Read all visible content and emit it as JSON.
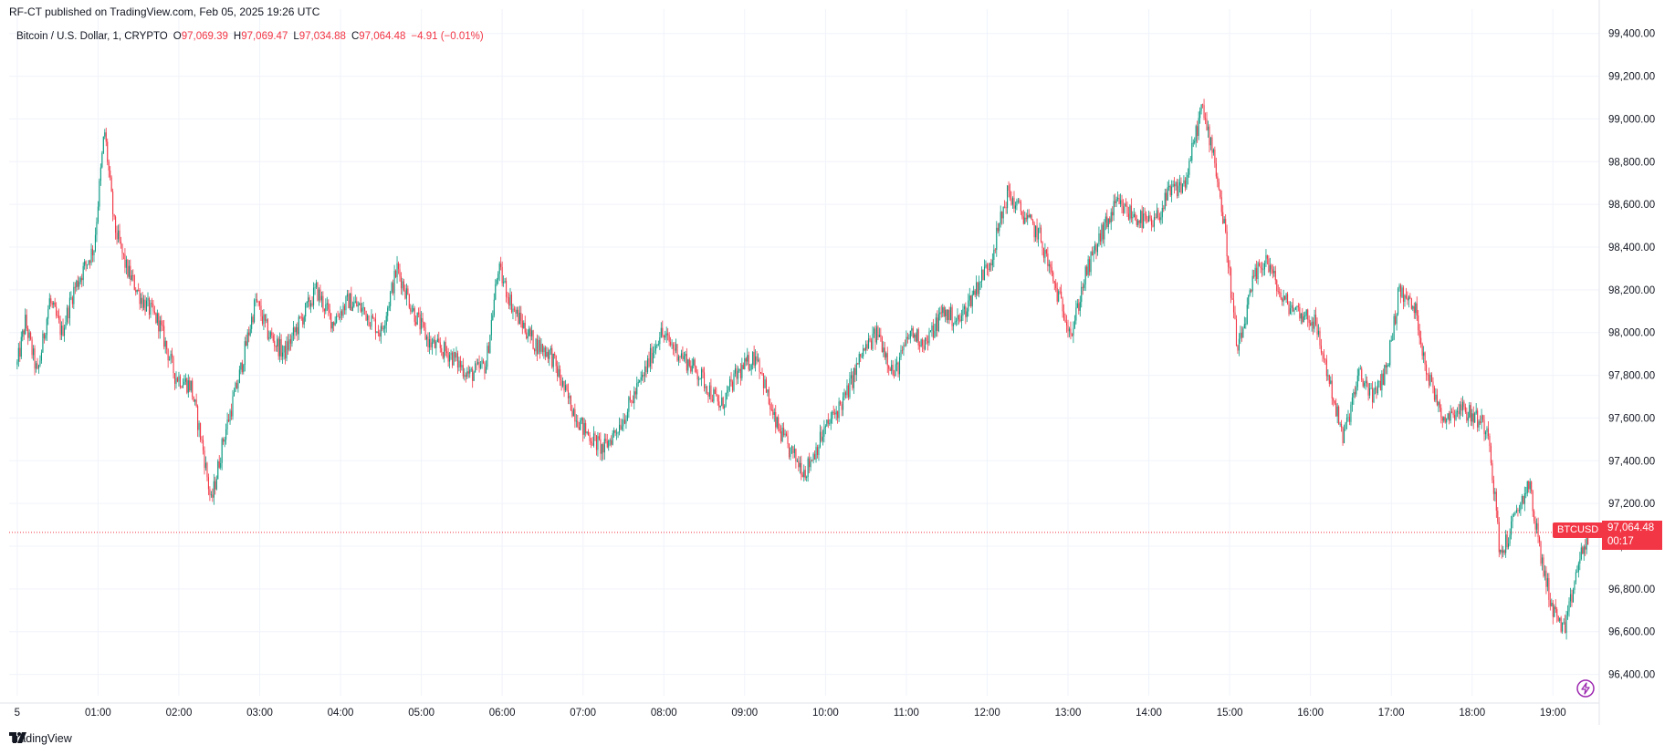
{
  "header": {
    "published": "RF-CT published on TradingView.com, Feb 05, 2025 19:26 UTC"
  },
  "legend": {
    "symbol": "Bitcoin / U.S. Dollar, 1, CRYPTO",
    "o_label": "O",
    "o_value": "97,069.39",
    "h_label": "H",
    "h_value": "97,069.47",
    "l_label": "L",
    "l_value": "97,034.88",
    "c_label": "C",
    "c_value": "97,064.48",
    "change": "−4.91 (−0.01%)"
  },
  "price_tag": {
    "symbol": "BTCUSD",
    "price": "97,064.48",
    "countdown": "00:17"
  },
  "footer": {
    "brand": "TradingView"
  },
  "colors": {
    "up": "#089981",
    "down": "#f23645",
    "grid": "#f0f3fa",
    "text": "#131722",
    "last_line": "#f23645"
  },
  "icons": {
    "logo": "tradingview-logo-icon",
    "bolt": "lightning-icon"
  },
  "chart_data": {
    "type": "candlestick",
    "title": "Bitcoin / U.S. Dollar, 1, CRYPTO",
    "ylim": [
      96300,
      99450
    ],
    "y_ticks": [
      96400,
      96600,
      96800,
      97000,
      97200,
      97400,
      97600,
      97800,
      98000,
      98200,
      98400,
      98600,
      98800,
      99000,
      99200,
      99400
    ],
    "y_tick_labels": [
      "96,400.00",
      "96,600.00",
      "96,800.00",
      "97,000.00",
      "97,200.00",
      "97,400.00",
      "97,600.00",
      "97,800.00",
      "98,000.00",
      "98,200.00",
      "98,400.00",
      "98,600.00",
      "98,800.00",
      "99,000.00",
      "99,200.00",
      "99,400.00"
    ],
    "x_ticks": [
      "5",
      "01:00",
      "02:00",
      "03:00",
      "04:00",
      "05:00",
      "06:00",
      "07:00",
      "08:00",
      "09:00",
      "10:00",
      "11:00",
      "12:00",
      "13:00",
      "14:00",
      "15:00",
      "16:00",
      "17:00",
      "18:00",
      "19:00"
    ],
    "x_tick_hours": [
      0,
      1,
      2,
      3,
      4,
      5,
      6,
      7,
      8,
      9,
      10,
      11,
      12,
      13,
      14,
      15,
      16,
      17,
      18,
      19
    ],
    "x_range_hours": [
      -0.1,
      19.55
    ],
    "last_price": 97064.48,
    "grid": true,
    "path": [
      [
        0.0,
        97850
      ],
      [
        0.1,
        98050
      ],
      [
        0.25,
        97800
      ],
      [
        0.4,
        98150
      ],
      [
        0.55,
        98000
      ],
      [
        0.7,
        98200
      ],
      [
        0.95,
        98400
      ],
      [
        1.08,
        98950
      ],
      [
        1.2,
        98500
      ],
      [
        1.35,
        98300
      ],
      [
        1.55,
        98150
      ],
      [
        1.75,
        98050
      ],
      [
        1.95,
        97800
      ],
      [
        2.15,
        97750
      ],
      [
        2.3,
        97450
      ],
      [
        2.4,
        97200
      ],
      [
        2.55,
        97500
      ],
      [
        2.75,
        97800
      ],
      [
        2.95,
        98150
      ],
      [
        3.1,
        98000
      ],
      [
        3.3,
        97900
      ],
      [
        3.5,
        98050
      ],
      [
        3.7,
        98200
      ],
      [
        3.9,
        98050
      ],
      [
        4.1,
        98150
      ],
      [
        4.3,
        98100
      ],
      [
        4.5,
        98000
      ],
      [
        4.7,
        98300
      ],
      [
        4.9,
        98100
      ],
      [
        5.1,
        97950
      ],
      [
        5.35,
        97900
      ],
      [
        5.6,
        97800
      ],
      [
        5.8,
        97850
      ],
      [
        5.95,
        98300
      ],
      [
        6.15,
        98100
      ],
      [
        6.4,
        97950
      ],
      [
        6.6,
        97900
      ],
      [
        6.8,
        97700
      ],
      [
        7.0,
        97550
      ],
      [
        7.25,
        97450
      ],
      [
        7.5,
        97600
      ],
      [
        7.75,
        97800
      ],
      [
        7.95,
        98000
      ],
      [
        8.2,
        97900
      ],
      [
        8.45,
        97800
      ],
      [
        8.7,
        97650
      ],
      [
        8.9,
        97800
      ],
      [
        9.15,
        97900
      ],
      [
        9.35,
        97600
      ],
      [
        9.55,
        97450
      ],
      [
        9.75,
        97350
      ],
      [
        10.0,
        97550
      ],
      [
        10.25,
        97700
      ],
      [
        10.45,
        97900
      ],
      [
        10.65,
        98000
      ],
      [
        10.85,
        97800
      ],
      [
        11.05,
        98000
      ],
      [
        11.25,
        97950
      ],
      [
        11.45,
        98100
      ],
      [
        11.65,
        98050
      ],
      [
        11.85,
        98200
      ],
      [
        12.05,
        98350
      ],
      [
        12.25,
        98650
      ],
      [
        12.45,
        98550
      ],
      [
        12.65,
        98450
      ],
      [
        12.85,
        98200
      ],
      [
        13.05,
        98000
      ],
      [
        13.2,
        98250
      ],
      [
        13.4,
        98450
      ],
      [
        13.6,
        98600
      ],
      [
        13.8,
        98550
      ],
      [
        14.05,
        98500
      ],
      [
        14.25,
        98650
      ],
      [
        14.45,
        98700
      ],
      [
        14.65,
        99050
      ],
      [
        14.8,
        98850
      ],
      [
        14.95,
        98450
      ],
      [
        15.1,
        97900
      ],
      [
        15.3,
        98250
      ],
      [
        15.45,
        98350
      ],
      [
        15.65,
        98150
      ],
      [
        15.85,
        98100
      ],
      [
        16.05,
        98050
      ],
      [
        16.25,
        97750
      ],
      [
        16.4,
        97500
      ],
      [
        16.6,
        97800
      ],
      [
        16.8,
        97700
      ],
      [
        16.95,
        97850
      ],
      [
        17.1,
        98200
      ],
      [
        17.3,
        98100
      ],
      [
        17.45,
        97800
      ],
      [
        17.65,
        97600
      ],
      [
        17.85,
        97650
      ],
      [
        18.05,
        97600
      ],
      [
        18.2,
        97550
      ],
      [
        18.35,
        96950
      ],
      [
        18.5,
        97100
      ],
      [
        18.7,
        97300
      ],
      [
        18.85,
        96950
      ],
      [
        19.0,
        96700
      ],
      [
        19.15,
        96600
      ],
      [
        19.3,
        96900
      ],
      [
        19.45,
        97064
      ]
    ]
  }
}
